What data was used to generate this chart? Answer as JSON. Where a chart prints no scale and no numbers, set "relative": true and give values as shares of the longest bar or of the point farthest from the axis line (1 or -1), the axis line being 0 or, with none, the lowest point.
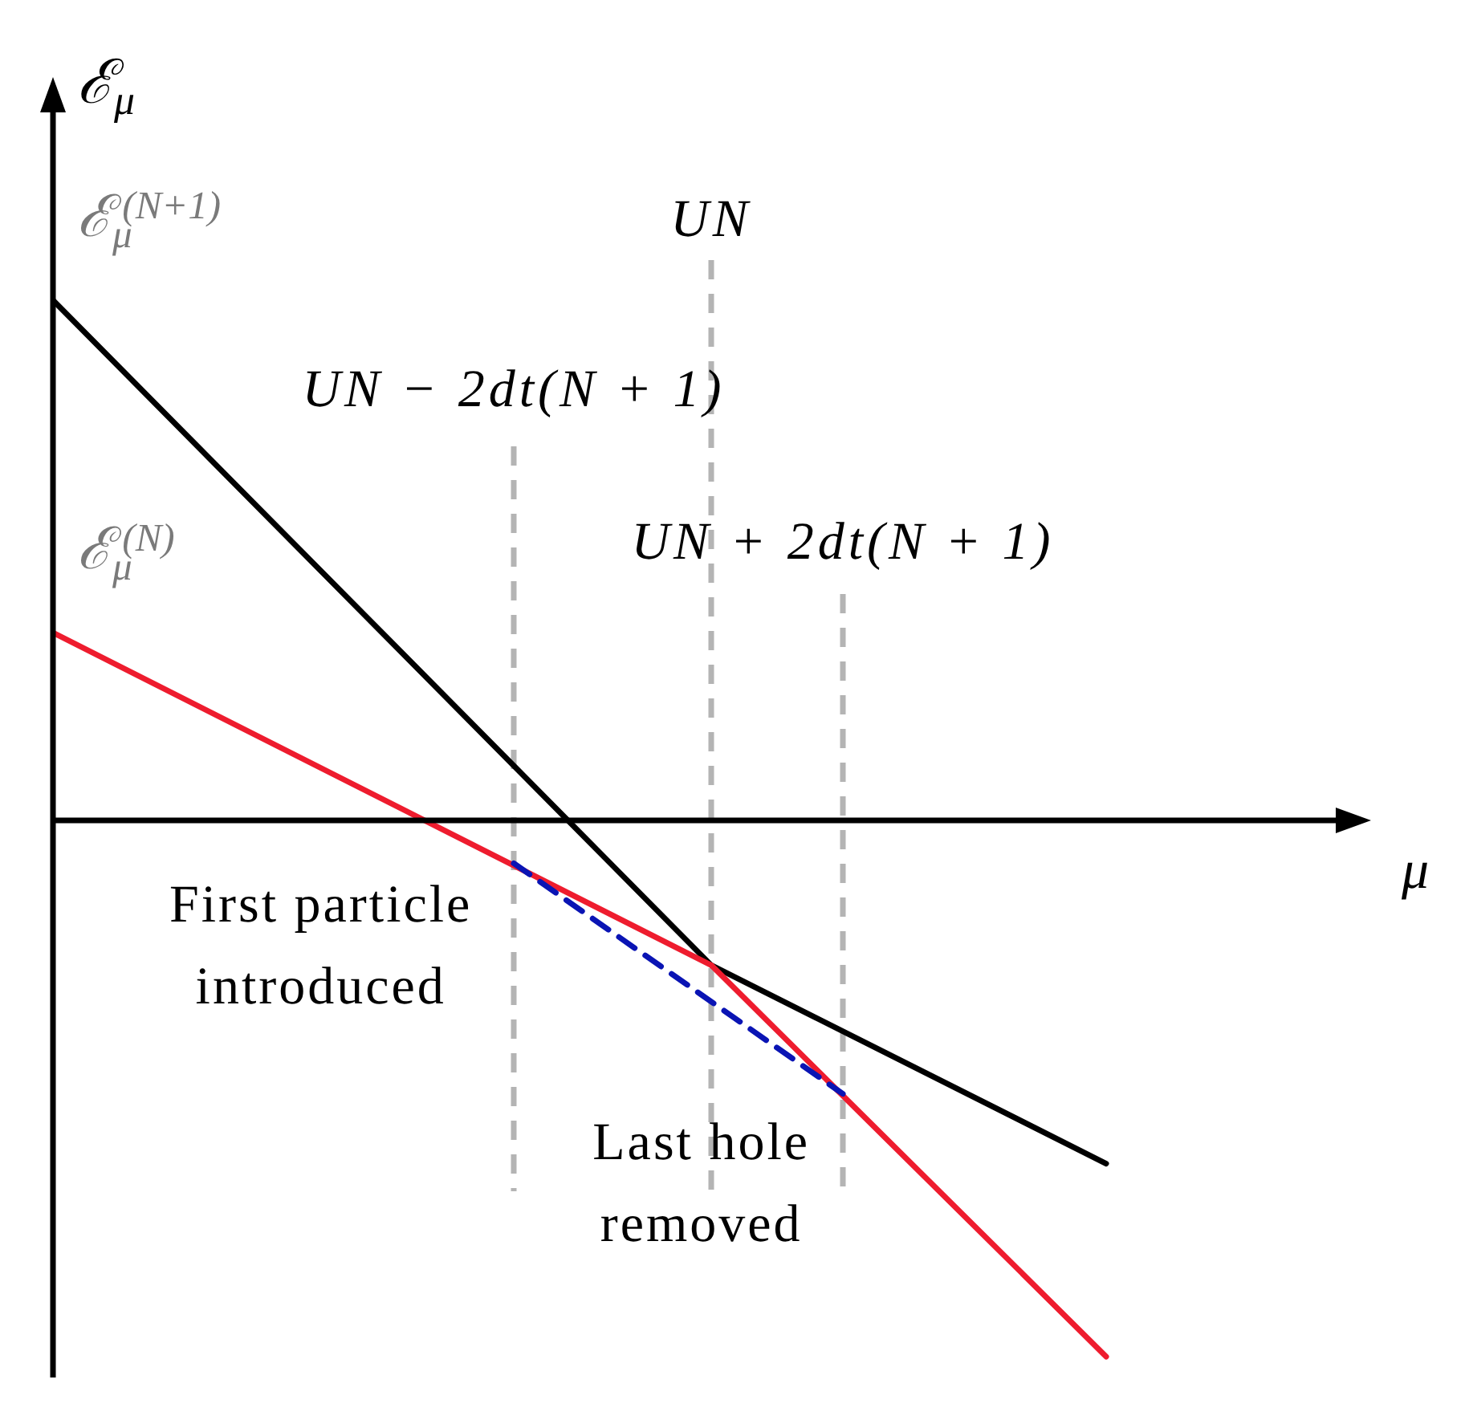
{
  "chart_data": {
    "type": "line",
    "relative": true,
    "xlabel": "μ",
    "ylabel": "ℰ$_{μ}$",
    "categories": [
      null,
      null,
      null,
      null,
      null,
      null,
      null,
      null,
      null,
      null,
      null,
      null,
      null,
      null,
      null,
      null,
      null,
      null,
      null,
      null,
      null
    ],
    "series": [
      {
        "name": "ℰ$_{μ}$$^{(N+1)}$",
        "color": "#000000",
        "values": [
          0.97,
          null,
          null,
          null,
          null,
          null,
          null,
          null,
          null,
          null,
          -0.27,
          null,
          null,
          null,
          null,
          null,
          -0.64,
          null,
          null,
          null,
          null
        ]
      },
      {
        "name": "ℰ$_{μ}$$^{(N)}$",
        "color": "#ee1c2e",
        "values": [
          0.35,
          null,
          null,
          null,
          null,
          null,
          null,
          null,
          null,
          null,
          -0.27,
          null,
          null,
          null,
          null,
          null,
          -1,
          null,
          null,
          null,
          null
        ]
      },
      {
        "color": "#0a14b4",
        "line_style": "dashed",
        "values": [
          null,
          null,
          null,
          null,
          null,
          null,
          null,
          -0.08,
          null,
          null,
          null,
          null,
          -0.51,
          null,
          null,
          null,
          null,
          null,
          null,
          null,
          null
        ]
      }
    ],
    "annotations": [
      "UN",
      "UN − 2dt(N + 1)",
      "UN + 2dt(N + 1)",
      "First particle introduced",
      "Last hole removed"
    ],
    "marker": "none",
    "tick_labels": false
  }
}
